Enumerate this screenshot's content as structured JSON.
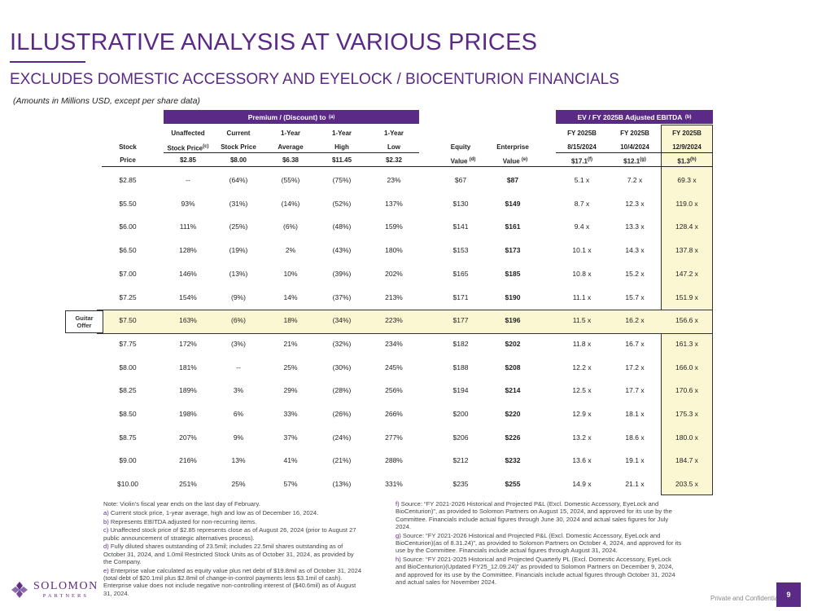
{
  "title": "ILLUSTRATIVE ANALYSIS AT VARIOUS PRICES",
  "subtitle": "EXCLUDES DOMESTIC ACCESSORY AND EYELOCK / BIOCENTURION FINANCIALS",
  "amounts_note": "(Amounts in Millions USD, except per share data)",
  "banners": {
    "premium": "Premium / (Discount) to",
    "premium_sup": "(a)",
    "ev": "EV / FY 2025B Adjusted EBITDA",
    "ev_sup": "(b)"
  },
  "headers": {
    "stock": {
      "l2": "Stock",
      "l3": "Price"
    },
    "unaffected": {
      "l1": "Unaffected",
      "l2": "Stock Price",
      "sup": "(c)",
      "val": "$2.85"
    },
    "current": {
      "l1": "Current",
      "l2": "Stock Price",
      "val": "$8.00"
    },
    "avg": {
      "l1": "1-Year",
      "l2": "Average",
      "val": "$6.38"
    },
    "high": {
      "l1": "1-Year",
      "l2": "High",
      "val": "$11.45"
    },
    "low": {
      "l1": "1-Year",
      "l2": "Low",
      "val": "$2.32"
    },
    "equity": {
      "l2": "Equity",
      "l3": "Value",
      "sup": "(d)"
    },
    "enterprise": {
      "l2": "Enterprise",
      "l3": "Value",
      "sup": "(e)"
    },
    "fy1": {
      "l1": "FY 2025B",
      "l2": "8/15/2024",
      "val": "$17.1",
      "sup": "(f)"
    },
    "fy2": {
      "l1": "FY 2025B",
      "l2": "10/4/2024",
      "val": "$12.1",
      "sup": "(g)"
    },
    "fy3": {
      "l1": "FY 2025B",
      "l2": "12/9/2024",
      "val": "$1.3",
      "sup": "(h)"
    }
  },
  "offer_label": {
    "l1": "Guitar",
    "l2": "Offer"
  },
  "rows": [
    [
      "$2.85",
      "--",
      "(64%)",
      "(55%)",
      "(75%)",
      "23%",
      "$67",
      "$87",
      "5.1 x",
      "7.2 x",
      "69.3 x"
    ],
    [
      "$5.50",
      "93%",
      "(31%)",
      "(14%)",
      "(52%)",
      "137%",
      "$130",
      "$149",
      "8.7 x",
      "12.3 x",
      "119.0 x"
    ],
    [
      "$6.00",
      "111%",
      "(25%)",
      "(6%)",
      "(48%)",
      "159%",
      "$141",
      "$161",
      "9.4 x",
      "13.3 x",
      "128.4 x"
    ],
    [
      "$6.50",
      "128%",
      "(19%)",
      "2%",
      "(43%)",
      "180%",
      "$153",
      "$173",
      "10.1 x",
      "14.3 x",
      "137.8 x"
    ],
    [
      "$7.00",
      "146%",
      "(13%)",
      "10%",
      "(39%)",
      "202%",
      "$165",
      "$185",
      "10.8 x",
      "15.2 x",
      "147.2 x"
    ],
    [
      "$7.25",
      "154%",
      "(9%)",
      "14%",
      "(37%)",
      "213%",
      "$171",
      "$190",
      "11.1 x",
      "15.7 x",
      "151.9 x"
    ],
    [
      "$7.50",
      "163%",
      "(6%)",
      "18%",
      "(34%)",
      "223%",
      "$177",
      "$196",
      "11.5 x",
      "16.2 x",
      "156.6 x"
    ],
    [
      "$7.75",
      "172%",
      "(3%)",
      "21%",
      "(32%)",
      "234%",
      "$182",
      "$202",
      "11.8 x",
      "16.7 x",
      "161.3 x"
    ],
    [
      "$8.00",
      "181%",
      "--",
      "25%",
      "(30%)",
      "245%",
      "$188",
      "$208",
      "12.2 x",
      "17.2 x",
      "166.0 x"
    ],
    [
      "$8.25",
      "189%",
      "3%",
      "29%",
      "(28%)",
      "256%",
      "$194",
      "$214",
      "12.5 x",
      "17.7 x",
      "170.6 x"
    ],
    [
      "$8.50",
      "198%",
      "6%",
      "33%",
      "(26%)",
      "266%",
      "$200",
      "$220",
      "12.9 x",
      "18.1 x",
      "175.3 x"
    ],
    [
      "$8.75",
      "207%",
      "9%",
      "37%",
      "(24%)",
      "277%",
      "$206",
      "$226",
      "13.2 x",
      "18.6 x",
      "180.0 x"
    ],
    [
      "$9.00",
      "216%",
      "13%",
      "41%",
      "(21%)",
      "288%",
      "$212",
      "$232",
      "13.6 x",
      "19.1 x",
      "184.7 x"
    ],
    [
      "$10.00",
      "251%",
      "25%",
      "57%",
      "(13%)",
      "331%",
      "$235",
      "$255",
      "14.9 x",
      "21.1 x",
      "203.5 x"
    ]
  ],
  "footnotes_left": [
    {
      "key": "",
      "text": "Note: Violin’s fiscal year ends on the last day of February."
    },
    {
      "key": "a)",
      "text": "Current stock price, 1-year average, high and low as of December 16, 2024."
    },
    {
      "key": "b)",
      "text": "Represents EBITDA adjusted for non-recurring items."
    },
    {
      "key": "c)",
      "text": "Unaffected stock price of $2.85 represents close as of August 26, 2024 (prior to August 27 public announcement of strategic alternatives process)."
    },
    {
      "key": "d)",
      "text": "Fully diluted shares outstanding of 23.5mil; includes 22.5mil shares outstanding as of October 31, 2024, and 1.0mil Restricted Stock Units as of October 31, 2024, as provided by the Company."
    },
    {
      "key": "e)",
      "text": "Enterprise value calculated as equity value plus net debt of $19.8mil as of October 31, 2024 (total debt of $20.1mil plus $2.8mil of change-in-control payments less $3.1mil of cash). Enterprise value does not include negative non-controlling interest of ($40.6mil) as of August 31, 2024."
    }
  ],
  "footnotes_right": [
    {
      "key": "f)",
      "text": "Source: “FY 2021-2026 Historical and Projected P&L (Excl. Domestic Accessory, EyeLock and BioCenturion)”, as provided to Solomon Partners on August 15, 2024, and approved for its use by the Committee. Financials include actual figures through June 30, 2024 and actual sales figures for July 2024."
    },
    {
      "key": "g)",
      "text": "Source: “FY 2021-2026 Historical and Projected P&L (Excl. Domestic Accessory, EyeLock and BioCenturion)(as of 8.31.24)”, as provided to Solomon Partners on October 4, 2024, and approved for its use by the Committee. Financials include actual figures through August 31, 2024."
    },
    {
      "key": "h)",
      "text": "Source: “FY 2021-2025 Historical and Projected Quarterly PL (Excl. Domestic Accessory, EyeLock and BioCenturion)(Updated FY25_12.09.24)” as provided to Solomon Partners on December 9, 2024, and approved for its use by the Committee. Financials include actual figures through October 31, 2024 and actual sales for November 2024."
    }
  ],
  "logo": {
    "main": "SOLOMON",
    "sub": "PARTNERS"
  },
  "confidential": "Private and Confidential",
  "page_number": "9",
  "colors": {
    "accent": "#5b2a86",
    "highlight": "#fbf7d2"
  }
}
